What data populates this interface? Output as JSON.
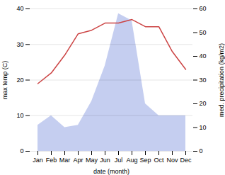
{
  "chart_data": {
    "type": "line",
    "categories": [
      "Jan",
      "Feb",
      "Mar",
      "Apr",
      "May",
      "Jun",
      "Jul",
      "Aug",
      "Sep",
      "Oct",
      "Nov",
      "Dec"
    ],
    "series": [
      {
        "type": "area",
        "axis": "y2",
        "color": "#c5cef0",
        "values": [
          11,
          15,
          10,
          11,
          21,
          36,
          58,
          55,
          20,
          15,
          15,
          15
        ]
      },
      {
        "type": "line",
        "color": "#cc4444",
        "values": [
          19,
          22,
          27,
          33,
          34,
          36,
          36,
          37,
          35,
          35,
          28,
          23
        ]
      }
    ],
    "xlabel": "date (month)",
    "ylabel": "max temp (C)",
    "y2label": "med. precipitation (kg/m2)",
    "ylim": [
      0,
      40
    ],
    "yticks": [
      0,
      10,
      20,
      30,
      40
    ],
    "y2lim": [
      0,
      60
    ],
    "y2ticks": [
      0,
      10,
      20,
      30,
      40,
      50,
      60
    ],
    "grid": true
  }
}
